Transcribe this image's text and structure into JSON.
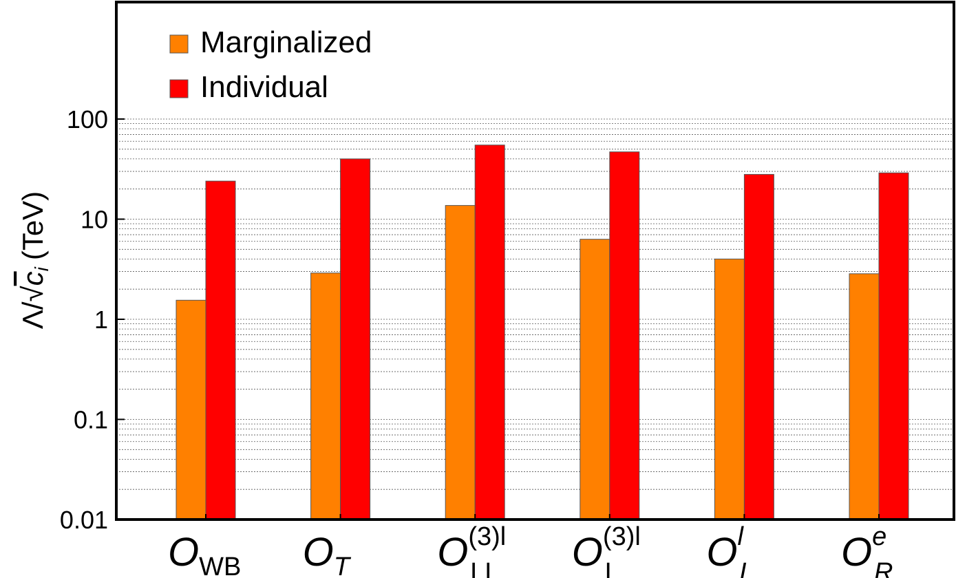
{
  "chart_data": {
    "type": "bar",
    "scale": "log",
    "ylim": [
      0.01,
      1000
    ],
    "yticks": [
      {
        "value": 0.01,
        "label": "0.01"
      },
      {
        "value": 0.1,
        "label": "0.1"
      },
      {
        "value": 1,
        "label": "1"
      },
      {
        "value": 10,
        "label": "10"
      },
      {
        "value": 100,
        "label": "100"
      }
    ],
    "ylabel": {
      "main": "Λ/√",
      "var": "c",
      "sub": "i",
      "unit": "(TeV)"
    },
    "categories": [
      {
        "main": "O",
        "sub": "WB",
        "sub_italic": false,
        "sup": "",
        "sup_italic": false
      },
      {
        "main": "O",
        "sub": "T",
        "sub_italic": true,
        "sup": "",
        "sup_italic": false
      },
      {
        "main": "O",
        "sub": "LL",
        "sub_italic": false,
        "sup": "(3)l",
        "sup_italic": false
      },
      {
        "main": "O",
        "sub": "L",
        "sub_italic": false,
        "sup": "(3)l",
        "sup_italic": false
      },
      {
        "main": "O",
        "sub": "L",
        "sub_italic": true,
        "sup": "l",
        "sup_italic": true
      },
      {
        "main": "O",
        "sub": "R",
        "sub_italic": true,
        "sup": "e",
        "sup_italic": true
      }
    ],
    "series": [
      {
        "name": "Marginalized",
        "color": "#ff8000",
        "values": [
          1.55,
          2.9,
          13.7,
          6.3,
          4.0,
          2.85
        ]
      },
      {
        "name": "Individual",
        "color": "#ff0000",
        "values": [
          24,
          40,
          55,
          47,
          28,
          29
        ]
      }
    ],
    "legend": {
      "position": "top-left"
    },
    "grid": true
  }
}
